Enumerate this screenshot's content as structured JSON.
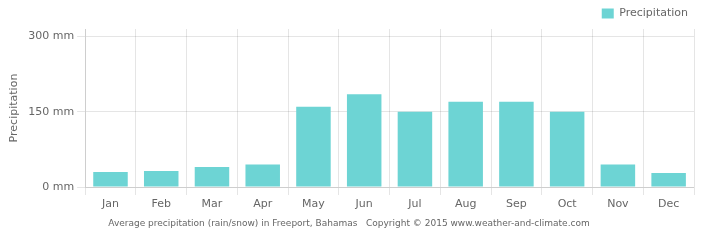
{
  "chart_data": {
    "type": "bar",
    "categories": [
      "Jan",
      "Feb",
      "Mar",
      "Apr",
      "May",
      "Jun",
      "Jul",
      "Aug",
      "Sep",
      "Oct",
      "Nov",
      "Dec"
    ],
    "series": [
      {
        "name": "Precipitation",
        "color": "#6dd4d4",
        "values": [
          30,
          32,
          40,
          45,
          160,
          185,
          150,
          170,
          170,
          150,
          45,
          28
        ]
      }
    ],
    "ylabel": "Precipitation",
    "ylim": [
      0,
      315
    ],
    "yticks": [
      {
        "value": 0,
        "label": "0 mm"
      },
      {
        "value": 150,
        "label": "150 mm"
      },
      {
        "value": 300,
        "label": "300 mm"
      }
    ],
    "grid": true,
    "legend": "upper right",
    "annotations": [
      "Average precipitation (rain/snow) in Freeport, Bahamas   Copyright © 2015 www.weather-and-climate.com"
    ]
  }
}
